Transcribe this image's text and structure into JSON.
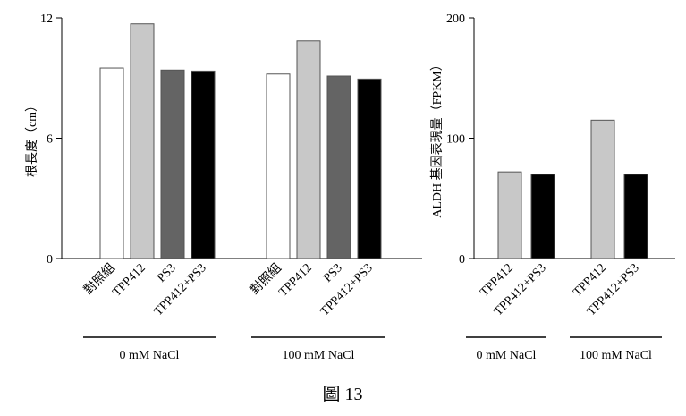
{
  "figure_caption": "圖 13",
  "chart_data": [
    {
      "type": "bar",
      "ylabel": "根長度（cm）",
      "ylim": [
        0,
        12
      ],
      "yticks": [
        0,
        6,
        12
      ],
      "grid": false,
      "groups": [
        {
          "label": "0 mM NaCl",
          "bars": [
            {
              "category": "對照組",
              "value": 9.5,
              "fill": "#ffffff"
            },
            {
              "category": "TPP412",
              "value": 11.7,
              "fill": "#c8c8c8"
            },
            {
              "category": "PS3",
              "value": 9.4,
              "fill": "#646464"
            },
            {
              "category": "TPP412+PS3",
              "value": 9.35,
              "fill": "#000000"
            }
          ]
        },
        {
          "label": "100 mM NaCl",
          "bars": [
            {
              "category": "對照組",
              "value": 9.2,
              "fill": "#ffffff"
            },
            {
              "category": "TPP412",
              "value": 10.85,
              "fill": "#c8c8c8"
            },
            {
              "category": "PS3",
              "value": 9.1,
              "fill": "#646464"
            },
            {
              "category": "TPP412+PS3",
              "value": 8.95,
              "fill": "#000000"
            }
          ]
        }
      ]
    },
    {
      "type": "bar",
      "ylabel": "ALDH 基因表現量（FPKM）",
      "ylim": [
        0,
        200
      ],
      "yticks": [
        0,
        100,
        200
      ],
      "grid": false,
      "groups": [
        {
          "label": "0 mM NaCl",
          "bars": [
            {
              "category": "TPP412",
              "value": 72,
              "fill": "#c8c8c8"
            },
            {
              "category": "TPP412+PS3",
              "value": 70,
              "fill": "#000000"
            }
          ]
        },
        {
          "label": "100 mM NaCl",
          "bars": [
            {
              "category": "TPP412",
              "value": 115,
              "fill": "#c8c8c8"
            },
            {
              "category": "TPP412+PS3",
              "value": 70,
              "fill": "#000000"
            }
          ]
        }
      ]
    }
  ]
}
